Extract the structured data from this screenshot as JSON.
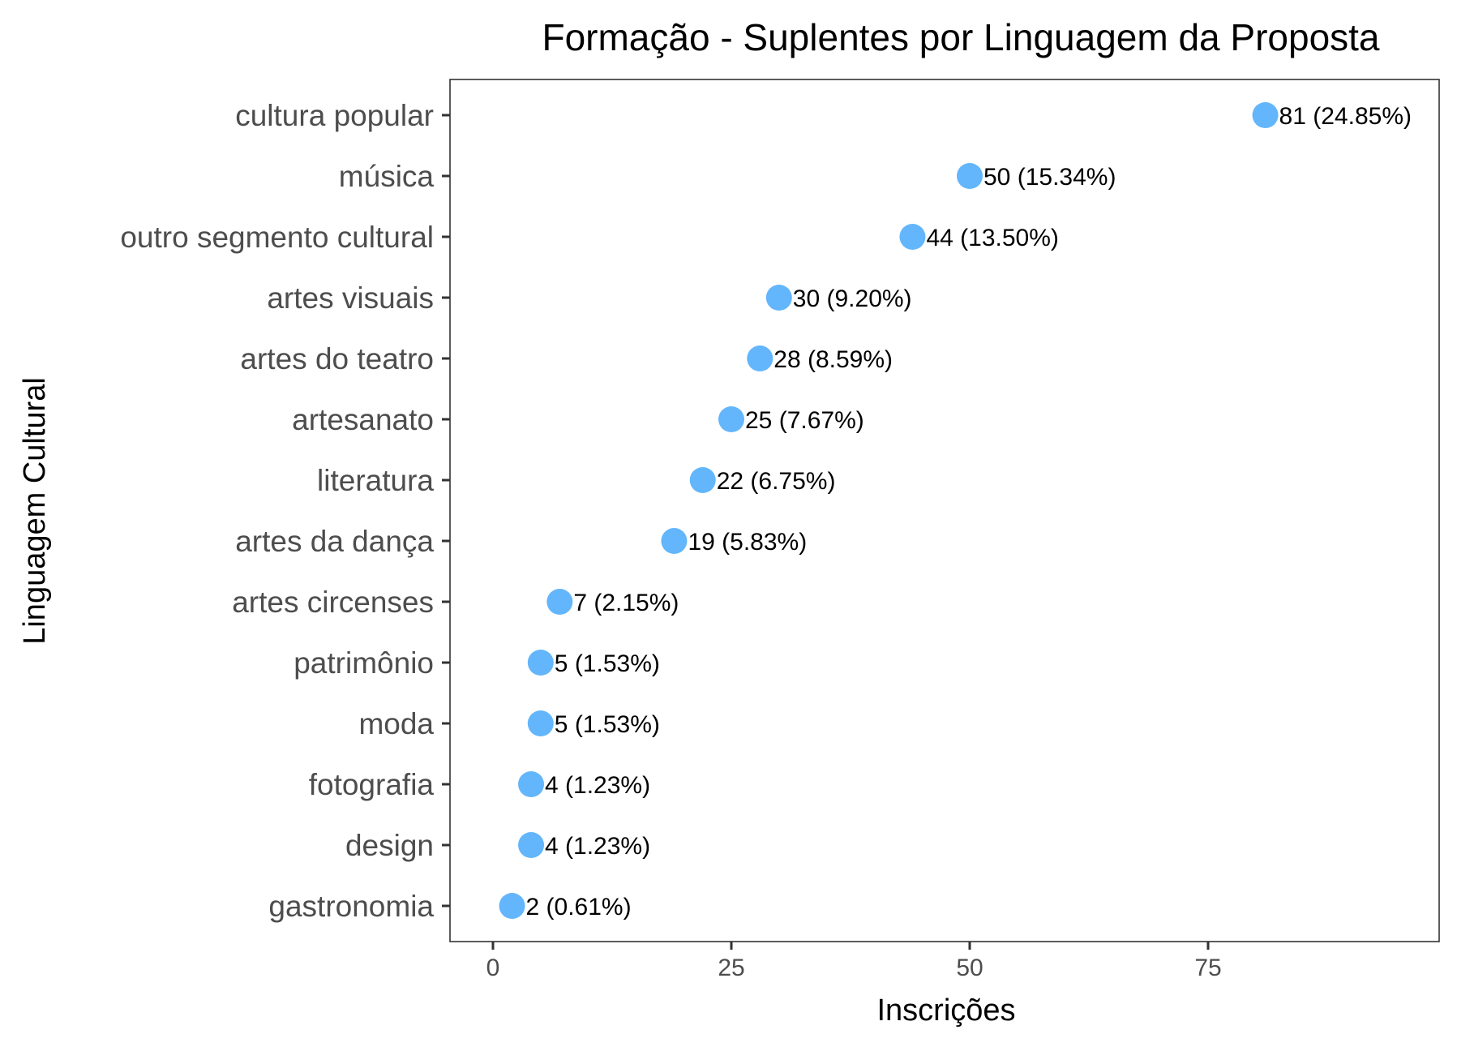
{
  "chart_data": {
    "type": "scatter",
    "title": "Formação - Suplentes por Linguagem da Proposta",
    "xlabel": "Inscrições",
    "ylabel": "Linguagem Cultural",
    "xlim": [
      -4.5,
      100
    ],
    "xticks": [
      0,
      25,
      50,
      75
    ],
    "xtick_labels": [
      "0",
      "25",
      "50",
      "75"
    ],
    "grid": false,
    "legend": "none",
    "point_color": "#63b6fb",
    "categories": [
      "cultura popular",
      "música",
      "outro segmento cultural",
      "artes visuais",
      "artes do teatro",
      "artesanato",
      "literatura",
      "artes da dança",
      "artes circenses",
      "patrimônio",
      "moda",
      "fotografia",
      "design",
      "gastronomia"
    ],
    "values": [
      81,
      50,
      44,
      30,
      28,
      25,
      22,
      19,
      7,
      5,
      5,
      4,
      4,
      2
    ],
    "labels": [
      "81 (24.85%)",
      "50 (15.34%)",
      "44 (13.50%)",
      "30 (9.20%)",
      "28 (8.59%)",
      "25 (7.67%)",
      "22 (6.75%)",
      "19 (5.83%)",
      "7 (2.15%)",
      "5 (1.53%)",
      "5 (1.53%)",
      "4 (1.23%)",
      "4 (1.23%)",
      "2 (0.61%)"
    ]
  }
}
